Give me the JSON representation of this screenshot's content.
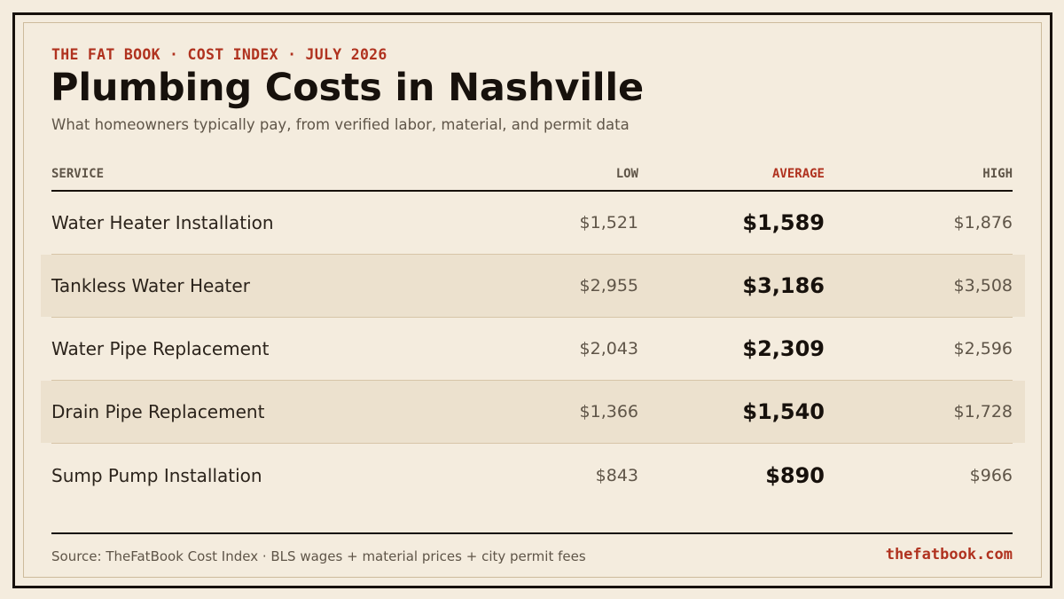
{
  "header": {
    "eyebrow": "THE FAT BOOK · COST INDEX · JULY 2026",
    "title": "Plumbing Costs in Nashville",
    "subtitle": "What homeowners typically pay, from verified labor, material, and permit data"
  },
  "colors": {
    "accent": "#b0321f",
    "ink": "#17110c",
    "background": "#f4ecde",
    "row_shade": "#ece1ce"
  },
  "chart_data": {
    "type": "table",
    "columns": [
      "SERVICE",
      "LOW",
      "AVERAGE",
      "HIGH"
    ],
    "rows": [
      {
        "service": "Water Heater Installation",
        "low": "$1,521",
        "average": "$1,589",
        "high": "$1,876"
      },
      {
        "service": "Tankless Water Heater",
        "low": "$2,955",
        "average": "$3,186",
        "high": "$3,508"
      },
      {
        "service": "Water Pipe Replacement",
        "low": "$2,043",
        "average": "$2,309",
        "high": "$2,596"
      },
      {
        "service": "Drain Pipe Replacement",
        "low": "$1,366",
        "average": "$1,540",
        "high": "$1,728"
      },
      {
        "service": "Sump Pump Installation",
        "low": "$843",
        "average": "$890",
        "high": "$966"
      }
    ]
  },
  "footer": {
    "source": "Source: TheFatBook Cost Index · BLS wages + material prices + city permit fees",
    "site": "thefatbook.com"
  }
}
